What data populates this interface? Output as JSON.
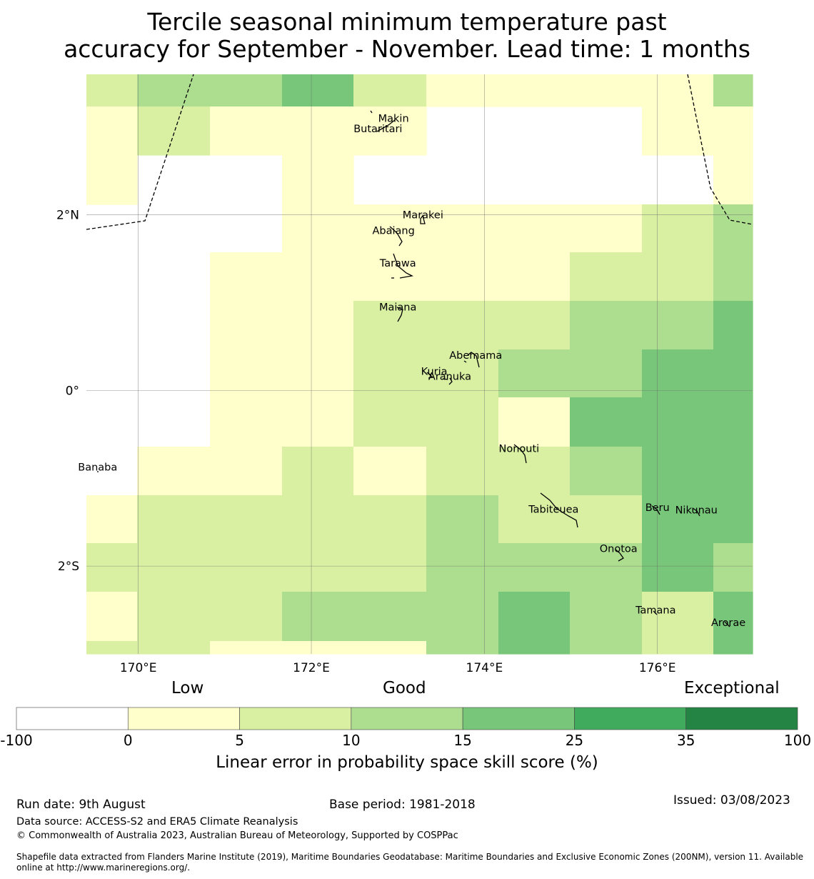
{
  "title": {
    "line1": "Tercile seasonal minimum temperature past",
    "line2": "accuracy for September - November. Lead time: 1 months"
  },
  "map": {
    "lon_range": [
      169.4,
      177.1
    ],
    "lat_range": [
      -3.0,
      3.6
    ],
    "x_ticks": [
      {
        "lon": 170,
        "label": "170°E"
      },
      {
        "lon": 172,
        "label": "172°E"
      },
      {
        "lon": 174,
        "label": "174°E"
      },
      {
        "lon": 176,
        "label": "176°E"
      }
    ],
    "y_ticks": [
      {
        "lat": 2,
        "label": "2°N"
      },
      {
        "lat": 0,
        "label": "0°"
      },
      {
        "lat": -2,
        "label": "2°S"
      }
    ],
    "grid_lon_edges": [
      169.4,
      169.99,
      170.83,
      171.66,
      172.49,
      173.33,
      174.16,
      174.99,
      175.82,
      176.65,
      177.1
    ],
    "grid_lat_edges": [
      3.6,
      3.23,
      2.68,
      2.12,
      1.57,
      1.02,
      0.47,
      -0.08,
      -0.64,
      -1.19,
      -1.74,
      -2.29,
      -2.85,
      -3.0
    ],
    "skill_category_rows": [
      [
        1,
        2,
        2,
        3,
        1,
        0,
        0,
        0,
        0,
        2
      ],
      [
        0,
        1,
        0,
        0,
        0,
        -1,
        -1,
        -1,
        0,
        0
      ],
      [
        0,
        -1,
        -1,
        0,
        -1,
        -1,
        -1,
        -1,
        -1,
        0
      ],
      [
        -1,
        -1,
        -1,
        0,
        0,
        0,
        0,
        0,
        1,
        2
      ],
      [
        -1,
        -1,
        0,
        0,
        0,
        0,
        0,
        1,
        1,
        2
      ],
      [
        -1,
        -1,
        0,
        0,
        1,
        1,
        1,
        2,
        2,
        3
      ],
      [
        -1,
        -1,
        0,
        0,
        1,
        1,
        2,
        2,
        3,
        3
      ],
      [
        -1,
        -1,
        0,
        0,
        1,
        1,
        0,
        3,
        3,
        3
      ],
      [
        -1,
        0,
        0,
        1,
        0,
        1,
        1,
        2,
        3,
        3
      ],
      [
        0,
        1,
        1,
        1,
        1,
        2,
        1,
        1,
        3,
        3
      ],
      [
        1,
        1,
        1,
        1,
        1,
        2,
        2,
        2,
        3,
        2
      ],
      [
        0,
        1,
        1,
        2,
        2,
        2,
        3,
        2,
        1,
        3
      ],
      [
        1,
        1,
        0,
        0,
        0,
        2,
        3,
        2,
        1,
        3
      ]
    ],
    "islands": [
      {
        "name": "Makin",
        "lon": 172.95,
        "lat": 3.1
      },
      {
        "name": "Butaritari",
        "lon": 172.77,
        "lat": 2.98
      },
      {
        "name": "Marakei",
        "lon": 173.29,
        "lat": 2.0
      },
      {
        "name": "Abaiang",
        "lon": 172.95,
        "lat": 1.82
      },
      {
        "name": "Tarawa",
        "lon": 173.0,
        "lat": 1.45
      },
      {
        "name": "Maiana",
        "lon": 173.0,
        "lat": 0.95
      },
      {
        "name": "Abemama",
        "lon": 173.9,
        "lat": 0.4
      },
      {
        "name": "Kuria",
        "lon": 173.42,
        "lat": 0.22
      },
      {
        "name": "Aranuka",
        "lon": 173.6,
        "lat": 0.16
      },
      {
        "name": "Nonouti",
        "lon": 174.4,
        "lat": -0.66
      },
      {
        "name": "Banaba",
        "lon": 169.53,
        "lat": -0.87
      },
      {
        "name": "Tabiteuea",
        "lon": 174.8,
        "lat": -1.35
      },
      {
        "name": "Beru",
        "lon": 176.0,
        "lat": -1.33
      },
      {
        "name": "Nikunau",
        "lon": 176.45,
        "lat": -1.36
      },
      {
        "name": "Onotoa",
        "lon": 175.55,
        "lat": -1.8
      },
      {
        "name": "Tamana",
        "lon": 175.98,
        "lat": -2.5
      },
      {
        "name": "Arorae",
        "lon": 176.82,
        "lat": -2.64
      }
    ],
    "colors": {
      "nodata": "#ffffff",
      "c0": "#ffffcc",
      "c1": "#d9f0a3",
      "c2": "#addd8e",
      "c3": "#78c679",
      "c4": "#41ab5d",
      "c5": "#238443"
    }
  },
  "colorbar": {
    "category_labels": {
      "low": "Low",
      "good": "Good",
      "exceptional": "Exceptional"
    },
    "ticks": [
      "-100",
      "0",
      "5",
      "10",
      "15",
      "25",
      "35",
      "100"
    ],
    "bins": [
      {
        "from": "-100",
        "to": "0",
        "color": "#ffffff"
      },
      {
        "from": "0",
        "to": "5",
        "color": "#ffffcc"
      },
      {
        "from": "5",
        "to": "10",
        "color": "#d9f0a3"
      },
      {
        "from": "10",
        "to": "15",
        "color": "#addd8e"
      },
      {
        "from": "15",
        "to": "25",
        "color": "#78c679"
      },
      {
        "from": "25",
        "to": "35",
        "color": "#41ab5d"
      },
      {
        "from": "35",
        "to": "100",
        "color": "#238443"
      }
    ],
    "label": "Linear error in probability space skill score (%)"
  },
  "footer": {
    "run_date": "Run date: 9th August",
    "base_period": "Base period: 1981-2018",
    "issued": "Issued: 03/08/2023",
    "data_source": "Data source: ACCESS-S2 and ERA5 Climate Reanalysis",
    "copyright": "© Commonwealth of Australia 2023, Australian Bureau of Meteorology, Supported by COSPPac",
    "shapefile_line1": "Shapefile data extracted from Flanders Marine Institute (2019), Maritime Boundaries Geodatabase: Maritime Boundaries and Exclusive Economic Zones (200NM), version 11. Available",
    "shapefile_line2": "online at http://www.marineregions.org/."
  }
}
